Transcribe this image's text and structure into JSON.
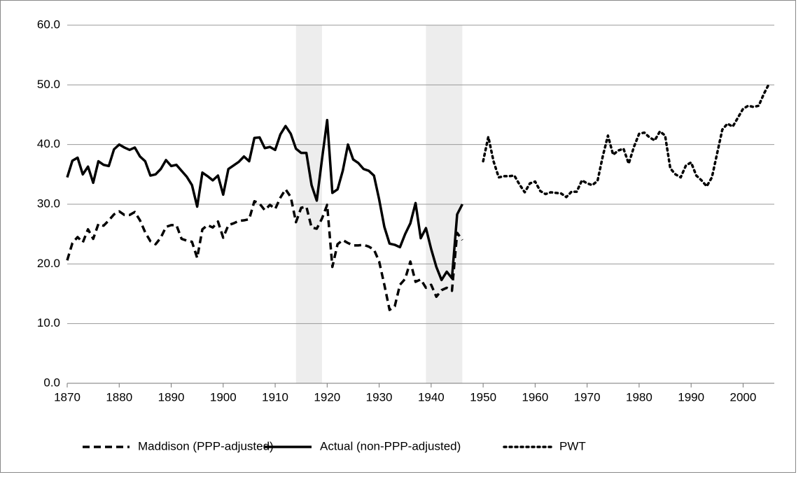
{
  "chart_data": {
    "type": "line",
    "xlim": [
      1870,
      2006
    ],
    "xticks": [
      1870,
      1880,
      1890,
      1900,
      1910,
      1920,
      1930,
      1940,
      1950,
      1960,
      1970,
      1980,
      1990,
      2000
    ],
    "ylim": [
      0,
      60
    ],
    "yticks": [
      {
        "value": 0,
        "label": "0.0"
      },
      {
        "value": 10,
        "label": "10.0"
      },
      {
        "value": 20,
        "label": "20.0"
      },
      {
        "value": 30,
        "label": "30.0"
      },
      {
        "value": 40,
        "label": "40.0"
      },
      {
        "value": 50,
        "label": "50.0"
      },
      {
        "value": 60,
        "label": "60.0"
      }
    ],
    "grid": true,
    "legend": "bottom",
    "shaded": [
      [
        1914,
        1919
      ],
      [
        1939,
        1946
      ]
    ],
    "shade_color": "#ededed",
    "series": [
      {
        "name": "Maddison (PPP-adjusted)",
        "color": "#000000",
        "style": "dashed",
        "x": [
          1870,
          1871,
          1872,
          1873,
          1874,
          1875,
          1876,
          1877,
          1878,
          1879,
          1880,
          1881,
          1882,
          1883,
          1884,
          1885,
          1886,
          1887,
          1888,
          1889,
          1890,
          1891,
          1892,
          1893,
          1894,
          1895,
          1896,
          1897,
          1898,
          1899,
          1900,
          1901,
          1902,
          1903,
          1904,
          1905,
          1906,
          1907,
          1908,
          1909,
          1910,
          1911,
          1912,
          1913,
          1914,
          1915,
          1916,
          1917,
          1918,
          1919,
          1920,
          1921,
          1922,
          1923,
          1924,
          1925,
          1926,
          1927,
          1928,
          1929,
          1930,
          1931,
          1932,
          1933,
          1934,
          1935,
          1936,
          1937,
          1938,
          1939,
          1940,
          1941,
          1942,
          1943,
          1944,
          1945,
          1946
        ],
        "values": [
          20.6,
          23.5,
          24.5,
          23.6,
          25.8,
          24.2,
          26.7,
          26.4,
          27.3,
          28.3,
          28.8,
          28.2,
          28.2,
          28.7,
          27.3,
          25.3,
          23.8,
          23.3,
          24.4,
          26.2,
          26.5,
          26.5,
          24.2,
          23.9,
          23.7,
          21,
          25.8,
          26.5,
          26.1,
          27.1,
          24.4,
          26.5,
          26.8,
          27.2,
          27.3,
          27.5,
          30.5,
          30.1,
          29,
          29.9,
          29.2,
          31.1,
          32.5,
          31.2,
          27,
          29.4,
          29.6,
          26.1,
          25.9,
          27.6,
          29.9,
          19.5,
          23.3,
          24,
          23.5,
          23.1,
          23.1,
          23.2,
          22.9,
          22.4,
          20.4,
          16.5,
          12.3,
          12.9,
          16.5,
          17.5,
          20.4,
          17,
          17.4,
          16,
          16.5,
          14.5,
          15.6,
          16,
          15.5,
          25.2,
          24
        ]
      },
      {
        "name": "Actual (non-PPP-adjusted)",
        "color": "#000000",
        "style": "solid",
        "x": [
          1870,
          1871,
          1872,
          1873,
          1874,
          1875,
          1876,
          1877,
          1878,
          1879,
          1880,
          1881,
          1882,
          1883,
          1884,
          1885,
          1886,
          1887,
          1888,
          1889,
          1890,
          1891,
          1892,
          1893,
          1894,
          1895,
          1896,
          1897,
          1898,
          1899,
          1900,
          1901,
          1902,
          1903,
          1904,
          1905,
          1906,
          1907,
          1908,
          1909,
          1910,
          1911,
          1912,
          1913,
          1914,
          1915,
          1916,
          1917,
          1918,
          1919,
          1920,
          1921,
          1922,
          1923,
          1924,
          1925,
          1926,
          1927,
          1928,
          1929,
          1930,
          1931,
          1932,
          1933,
          1934,
          1935,
          1936,
          1937,
          1938,
          1939,
          1940,
          1941,
          1942,
          1943,
          1944,
          1945,
          1946
        ],
        "values": [
          34.5,
          37.3,
          37.8,
          35,
          36.3,
          33.6,
          37.2,
          36.6,
          36.4,
          39.2,
          40,
          39.5,
          39.1,
          39.5,
          38,
          37.2,
          34.8,
          35,
          35.9,
          37.4,
          36.4,
          36.6,
          35.6,
          34.6,
          33.2,
          29.6,
          35.3,
          34.7,
          34,
          34.8,
          31.6,
          35.9,
          36.5,
          37.1,
          38,
          37.2,
          41.1,
          41.2,
          39.4,
          39.6,
          39.1,
          41.7,
          43.1,
          41.8,
          39.3,
          38.6,
          38.6,
          33.2,
          30.6,
          37.5,
          44.1,
          31.9,
          32.5,
          35.6,
          40,
          37.5,
          36.9,
          35.9,
          35.6,
          34.8,
          30.8,
          26.2,
          23.4,
          23.2,
          22.8,
          25,
          26.8,
          30.2,
          24.3,
          26,
          22.5,
          19.5,
          17.3,
          18.7,
          17.6,
          28.3,
          30
        ]
      },
      {
        "name": "PWT",
        "color": "#000000",
        "style": "dotted",
        "x": [
          1950,
          1951,
          1952,
          1953,
          1954,
          1955,
          1956,
          1957,
          1958,
          1959,
          1960,
          1961,
          1962,
          1963,
          1964,
          1965,
          1966,
          1967,
          1968,
          1969,
          1970,
          1971,
          1972,
          1973,
          1974,
          1975,
          1976,
          1977,
          1978,
          1979,
          1980,
          1981,
          1982,
          1983,
          1984,
          1985,
          1986,
          1987,
          1988,
          1989,
          1990,
          1991,
          1992,
          1993,
          1994,
          1995,
          1996,
          1997,
          1998,
          1999,
          2000,
          2001,
          2002,
          2003,
          2004,
          2005
        ],
        "values": [
          37.2,
          41.3,
          37.2,
          34.5,
          34.7,
          34.7,
          34.8,
          33.3,
          32,
          33.5,
          33.8,
          32.2,
          31.7,
          32,
          31.9,
          31.8,
          31.2,
          32.1,
          32.1,
          34,
          33.5,
          33.2,
          33.9,
          38,
          41.5,
          38.3,
          39,
          39.3,
          36.8,
          39.6,
          41.8,
          42,
          41.2,
          40.7,
          42.2,
          41.5,
          36,
          35,
          34.5,
          36.5,
          37,
          34.8,
          34,
          33,
          34.5,
          38.5,
          42.5,
          43.5,
          43,
          44.5,
          46,
          46.5,
          46.3,
          46.5,
          48.5,
          50.2
        ]
      }
    ]
  }
}
